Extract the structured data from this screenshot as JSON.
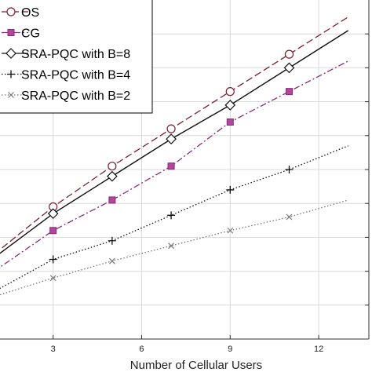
{
  "chart_data": {
    "type": "line",
    "xlabel": "Number of Cellular Users",
    "ylabel": "",
    "title": "",
    "xlim": [
      1.2,
      13.7
    ],
    "ylim": [
      0,
      1
    ],
    "x_ticks": [
      3,
      6,
      9,
      12
    ],
    "x_tick_labels": [
      "3",
      "6",
      "9",
      "12"
    ],
    "y_ticks": [
      0.1,
      0.2,
      0.3,
      0.4,
      0.5,
      0.6,
      0.7,
      0.8,
      0.9
    ],
    "grid": true,
    "legend_position": "top-left",
    "series": [
      {
        "name": "OS",
        "color": "#7a1f2b",
        "line": "dashed",
        "marker": "circle",
        "x": [
          1,
          3,
          5,
          7,
          9,
          11,
          13
        ],
        "y": [
          0.25,
          0.39,
          0.51,
          0.62,
          0.73,
          0.84,
          0.95
        ],
        "marker_x": [
          3,
          5,
          7,
          9,
          11
        ]
      },
      {
        "name": "CG",
        "color": "#8b2a7a",
        "marker_color": "#b0479a",
        "line": "dashdot",
        "marker": "square",
        "x": [
          1,
          3,
          5,
          7,
          9,
          11,
          13
        ],
        "y": [
          0.2,
          0.32,
          0.41,
          0.51,
          0.64,
          0.73,
          0.82
        ],
        "marker_x": [
          3,
          5,
          7,
          9,
          11
        ]
      },
      {
        "name": "SRA-PQC with B=8",
        "color": "#111111",
        "line": "solid",
        "marker": "diamond",
        "x": [
          1,
          3,
          5,
          7,
          9,
          11,
          13
        ],
        "y": [
          0.24,
          0.37,
          0.48,
          0.59,
          0.69,
          0.8,
          0.91
        ],
        "marker_x": [
          3,
          5,
          7,
          9,
          11
        ]
      },
      {
        "name": "SRA-PQC with B=4",
        "color": "#111111",
        "line": "dotted",
        "marker": "plus",
        "x": [
          1,
          3,
          5,
          7,
          9,
          11,
          13
        ],
        "y": [
          0.14,
          0.235,
          0.29,
          0.365,
          0.44,
          0.5,
          0.57
        ],
        "marker_x": [
          3,
          5,
          7,
          9,
          11
        ]
      },
      {
        "name": "SRA-PQC with B=2",
        "color": "#777777",
        "line": "dotted",
        "marker": "x",
        "x": [
          1,
          3,
          5,
          7,
          9,
          11,
          13
        ],
        "y": [
          0.125,
          0.18,
          0.23,
          0.275,
          0.32,
          0.36,
          0.41
        ],
        "marker_x": [
          3,
          5,
          7,
          9,
          11
        ]
      }
    ]
  }
}
